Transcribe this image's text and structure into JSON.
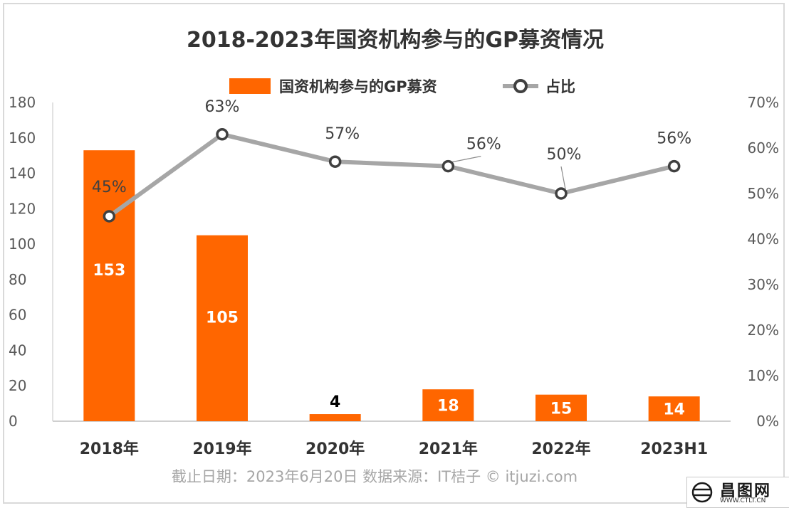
{
  "chart_data": {
    "type": "bar",
    "title": "2018-2023年国资机构参与的GP募资情况",
    "categories": [
      "2018年",
      "2019年",
      "2020年",
      "2021年",
      "2022年",
      "2023H1"
    ],
    "series": [
      {
        "name": "国资机构参与的GP募资",
        "type": "bar",
        "axis": "left",
        "color": "#ff6600",
        "values": [
          153,
          105,
          4,
          18,
          15,
          14
        ]
      },
      {
        "name": "占比",
        "type": "line",
        "axis": "right",
        "color": "#a6a6a6",
        "values": [
          45,
          63,
          57,
          56,
          50,
          56
        ],
        "labels": [
          "45%",
          "63%",
          "57%",
          "56%",
          "50%",
          "56%"
        ]
      }
    ],
    "y_left": {
      "ylim": [
        0,
        180
      ],
      "ticks": [
        "0",
        "20",
        "40",
        "60",
        "80",
        "100",
        "120",
        "140",
        "160",
        "180"
      ]
    },
    "y_right": {
      "ylim": [
        0,
        70
      ],
      "ticks": [
        "0%",
        "10%",
        "20%",
        "30%",
        "40%",
        "50%",
        "60%",
        "70%"
      ]
    },
    "legend_position": "top-center",
    "grid": false
  },
  "source_text": "截止日期：2023年6月20日    数据来源：IT桔子 © itjuzi.com",
  "watermark": {
    "name": "昌图网",
    "url": "WWW.CTLT.CN"
  }
}
